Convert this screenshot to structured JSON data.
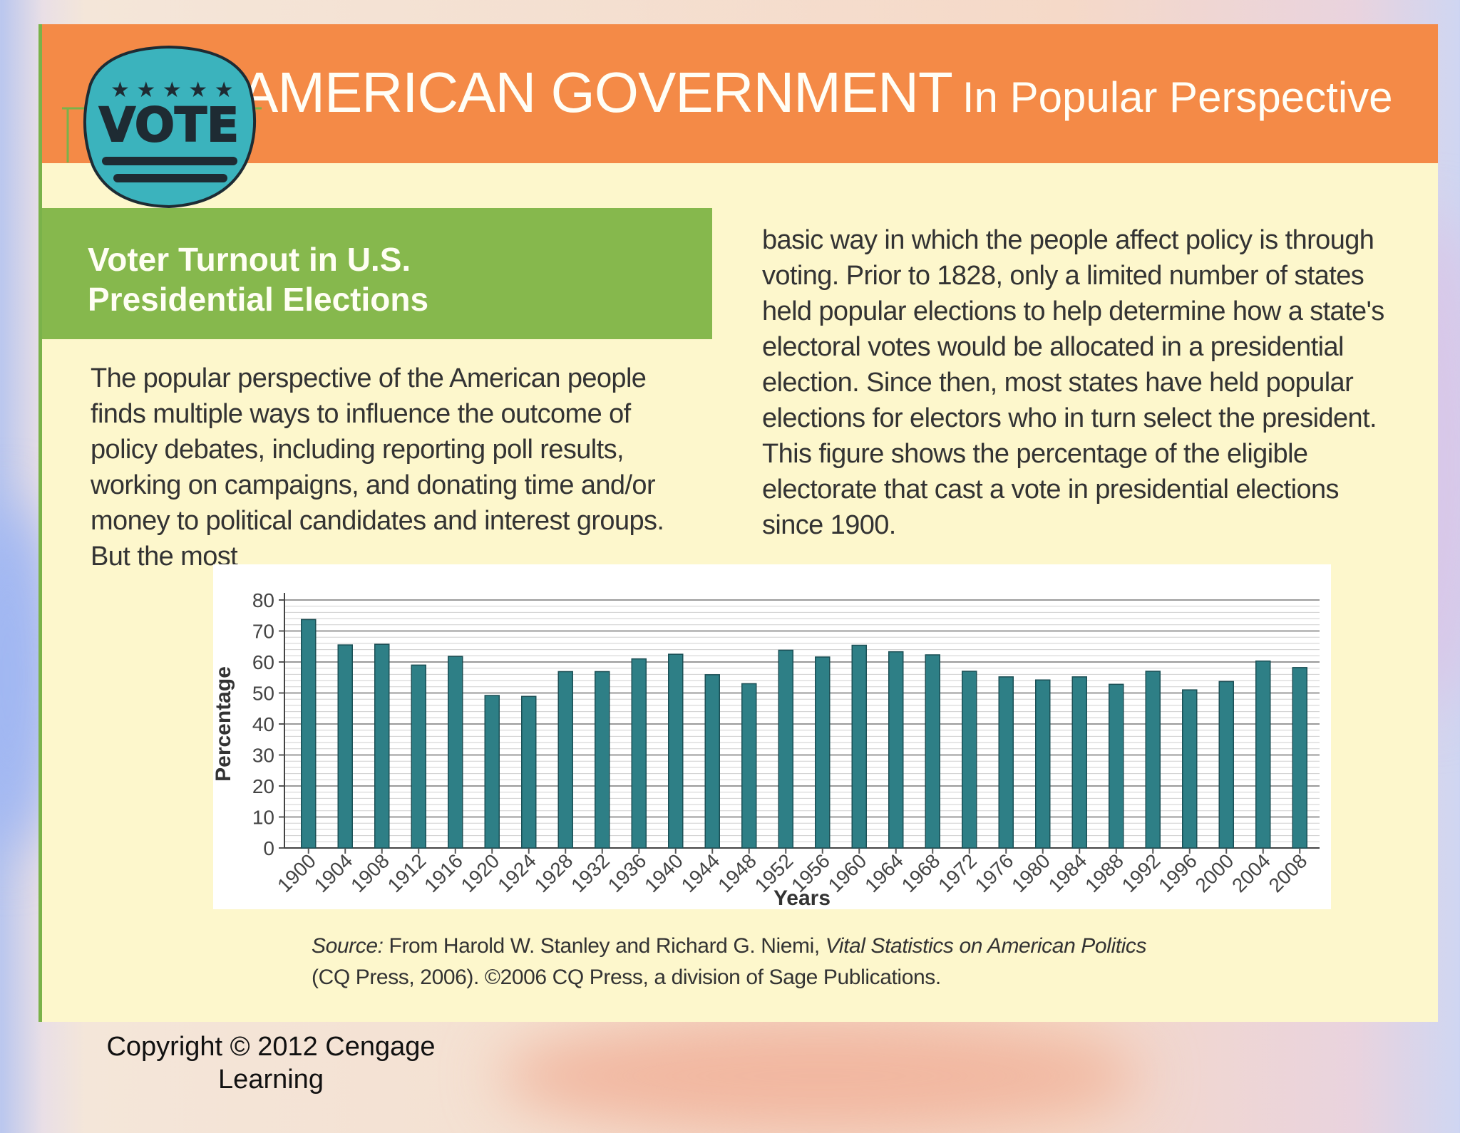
{
  "colors": {
    "header_orange": "#f48a47",
    "panel_yellow": "#fdf7cc",
    "title_green": "#86b84d",
    "bar_teal": "#2e7f86",
    "badge_teal": "#3bb3bd"
  },
  "header": {
    "title_main": "AMERICAN GOVERNMENT",
    "title_sub": "In Popular Perspective",
    "badge_text": "VOTE"
  },
  "section": {
    "title_line1": "Voter Turnout in U.S.",
    "title_line2": "Presidential Elections"
  },
  "body": {
    "para_left": "The popular perspective of the American people finds multiple ways to influence the outcome of policy debates, including reporting poll results, working on campaigns, and donating time and/or money to political candidates and interest groups. But the most",
    "para_right": "basic way in which the people affect policy is through voting. Prior to 1828, only a limited number of states held popular elections to help determine how a state's electoral votes would be allocated in a presidential election. Since then, most states have held popular elections for electors who in turn select the president. This figure shows the percentage of the eligible electorate that cast a vote in presidential elections since 1900."
  },
  "chart_data": {
    "type": "bar",
    "title": "Voter Turnout in U.S. Presidential Elections",
    "xlabel": "Years",
    "ylabel": "Percentage",
    "ylim": [
      0,
      80
    ],
    "yticks": [
      0,
      10,
      20,
      30,
      40,
      50,
      60,
      70,
      80
    ],
    "grid": true,
    "categories": [
      "1900",
      "1904",
      "1908",
      "1912",
      "1916",
      "1920",
      "1924",
      "1928",
      "1932",
      "1936",
      "1940",
      "1944",
      "1948",
      "1952",
      "1956",
      "1960",
      "1964",
      "1968",
      "1972",
      "1976",
      "1980",
      "1984",
      "1988",
      "1992",
      "1996",
      "2000",
      "2004",
      "2008"
    ],
    "values": [
      73.7,
      65.5,
      65.7,
      59.0,
      61.8,
      49.2,
      48.9,
      56.9,
      56.9,
      61.0,
      62.5,
      55.9,
      53.0,
      63.8,
      61.6,
      65.4,
      63.3,
      62.3,
      57.0,
      55.2,
      54.2,
      55.2,
      52.8,
      57.0,
      51.0,
      53.7,
      60.3,
      58.2
    ]
  },
  "source": {
    "label": "Source:",
    "text1": " From Harold W. Stanley and Richard G. Niemi, ",
    "title": "Vital Statistics on American Politics",
    "text2": "(CQ Press, 2006). ©2006 CQ Press, a division of Sage Publications."
  },
  "footer": {
    "copyright_line1": "Copyright © 2012 Cengage",
    "copyright_line2": "Learning"
  }
}
